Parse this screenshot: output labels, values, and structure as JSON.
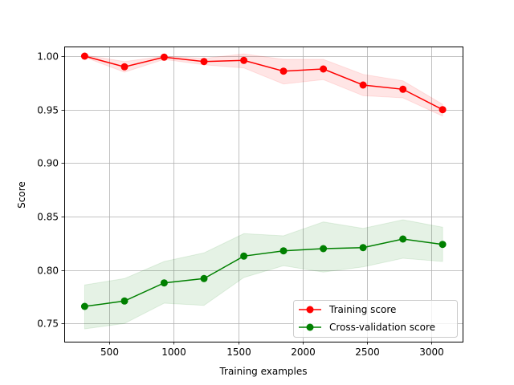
{
  "chart_data": {
    "type": "line",
    "title": "",
    "xlabel": "Training examples",
    "ylabel": "Score",
    "xlim": [
      150,
      3240
    ],
    "ylim": [
      0.733,
      1.009
    ],
    "xticks": [
      500,
      1000,
      1500,
      2000,
      2500,
      3000
    ],
    "xtick_labels": [
      "500",
      "1000",
      "1500",
      "2000",
      "2500",
      "3000"
    ],
    "yticks": [
      0.75,
      0.8,
      0.85,
      0.9,
      0.95,
      1.0
    ],
    "ytick_labels": [
      "0.75",
      "0.80",
      "0.85",
      "0.90",
      "0.95",
      "1.00"
    ],
    "grid": true,
    "legend_position": "lower-right",
    "x": [
      308,
      617,
      925,
      1234,
      1543,
      1851,
      2160,
      2468,
      2777,
      3085
    ],
    "series": [
      {
        "name": "Training score",
        "color": "#ff0000",
        "band_color": "#ff0000",
        "values": [
          1.0,
          0.99,
          0.999,
          0.995,
          0.996,
          0.986,
          0.988,
          0.973,
          0.969,
          0.95
        ],
        "lower": [
          0.999,
          0.985,
          0.997,
          0.992,
          0.989,
          0.974,
          0.978,
          0.963,
          0.961,
          0.944
        ],
        "upper": [
          1.001,
          0.995,
          1.0,
          0.998,
          1.002,
          0.997,
          0.997,
          0.983,
          0.977,
          0.955
        ]
      },
      {
        "name": "Cross-validation score",
        "color": "#008000",
        "band_color": "#008000",
        "values": [
          0.766,
          0.771,
          0.788,
          0.792,
          0.813,
          0.818,
          0.82,
          0.821,
          0.829,
          0.824
        ],
        "lower": [
          0.745,
          0.75,
          0.769,
          0.767,
          0.793,
          0.804,
          0.798,
          0.803,
          0.811,
          0.808
        ],
        "upper": [
          0.786,
          0.792,
          0.808,
          0.816,
          0.834,
          0.832,
          0.845,
          0.839,
          0.847,
          0.84
        ]
      }
    ]
  }
}
